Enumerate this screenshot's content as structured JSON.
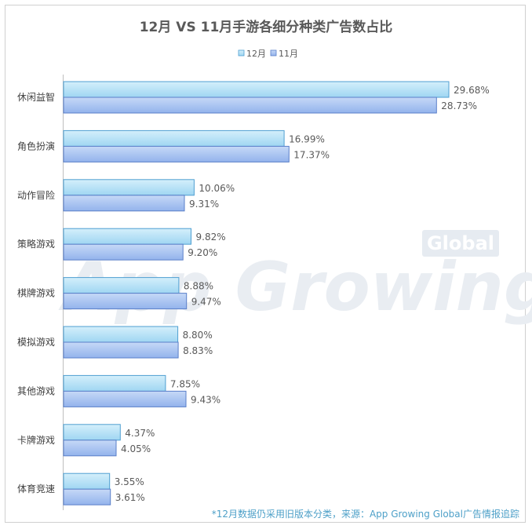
{
  "chart_data": {
    "type": "bar",
    "orientation": "horizontal",
    "title": "12月 VS 11月手游各细分种类广告数占比",
    "categories": [
      "休闲益智",
      "角色扮演",
      "动作冒险",
      "策略游戏",
      "棋牌游戏",
      "模拟游戏",
      "其他游戏",
      "卡牌游戏",
      "体育竞速"
    ],
    "series": [
      {
        "name": "12月",
        "values": [
          29.68,
          16.99,
          10.06,
          9.82,
          8.88,
          8.8,
          7.85,
          4.37,
          3.55
        ],
        "labels": [
          "29.68%",
          "16.99%",
          "10.06%",
          "9.82%",
          "8.88%",
          "8.80%",
          "7.85%",
          "4.37%",
          "3.55%"
        ]
      },
      {
        "name": "11月",
        "values": [
          28.73,
          17.37,
          9.31,
          9.2,
          9.47,
          8.83,
          9.43,
          4.05,
          3.61
        ],
        "labels": [
          "28.73%",
          "17.37%",
          "9.31%",
          "9.20%",
          "9.47%",
          "8.83%",
          "9.43%",
          "4.05%",
          "3.61%"
        ]
      }
    ],
    "xlim": [
      0,
      35
    ],
    "grid": false,
    "legend_position": "top-center"
  },
  "watermark": {
    "main": "App Growing",
    "badge": "Global"
  },
  "footnote": "*12月数据仍采用旧版本分类，来源：App  Growing  Global广告情报追踪",
  "colors": {
    "series_12": "#a8dcf4",
    "series_12_stroke": "#4f9fd1",
    "series_11": "#9fbef0",
    "series_11_stroke": "#5a7fc9"
  }
}
